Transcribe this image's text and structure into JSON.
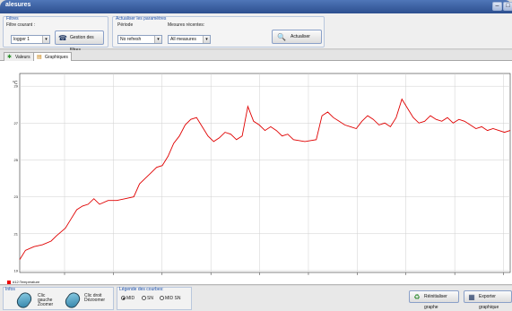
{
  "window": {
    "title": "alesures"
  },
  "filters": {
    "group_title": "Filtres",
    "current_label": "Filtre courant :",
    "current_value": "logger 1",
    "manage_button": "Gestion des filtres"
  },
  "params": {
    "group_title": "Actualiser les paramètres",
    "period_label": "Période",
    "period_value": "No refresh",
    "recent_label": "Mesures récentes:",
    "recent_value": "All measures",
    "refresh_button": "Actualiser"
  },
  "tabs": [
    {
      "label": "Valeurs",
      "active": false
    },
    {
      "label": "Graphiques",
      "active": true
    }
  ],
  "legend": {
    "entry": "#12:Temperature",
    "color": "#e00000"
  },
  "infos": {
    "group_title": "Infos",
    "left_click": "Clic gauche Zoomer",
    "right_click": "Clic droit Dézoomer"
  },
  "curve_legend": {
    "group_title": "Légende des courbes:",
    "options": [
      {
        "label": "MID",
        "selected": true
      },
      {
        "label": "SN",
        "selected": false
      },
      {
        "label": "MID SN",
        "selected": false
      }
    ]
  },
  "actions": {
    "reset_button": "Réinitialiser graphe",
    "export_button": "Exporter graphique"
  },
  "chart_data": {
    "type": "line",
    "ylabel": "°C",
    "ylim": [
      18.9,
      29.3
    ],
    "y_ticks": [
      "19",
      "21",
      "23",
      "25",
      "27",
      "29"
    ],
    "x_ticks": [
      "",
      "",
      "",
      "",
      "",
      "",
      "",
      "",
      "",
      ""
    ],
    "series": [
      {
        "name": "#12:Temperature",
        "color": "#e00000",
        "points": [
          [
            0,
            19.6
          ],
          [
            1,
            20.1
          ],
          [
            2.5,
            20.3
          ],
          [
            4,
            20.4
          ],
          [
            5.5,
            20.6
          ],
          [
            6.5,
            20.9
          ],
          [
            8,
            21.3
          ],
          [
            9,
            21.8
          ],
          [
            10,
            22.3
          ],
          [
            11,
            22.5
          ],
          [
            12,
            22.6
          ],
          [
            13,
            22.9
          ],
          [
            14,
            22.6
          ],
          [
            15.5,
            22.8
          ],
          [
            17,
            22.8
          ],
          [
            18.5,
            22.9
          ],
          [
            20,
            23.0
          ],
          [
            21,
            23.7
          ],
          [
            22,
            24.0
          ],
          [
            23,
            24.3
          ],
          [
            24,
            24.6
          ],
          [
            25,
            24.7
          ],
          [
            26,
            25.2
          ],
          [
            27,
            25.9
          ],
          [
            28,
            26.3
          ],
          [
            29,
            26.9
          ],
          [
            30,
            27.2
          ],
          [
            31,
            27.3
          ],
          [
            32,
            26.8
          ],
          [
            33,
            26.3
          ],
          [
            34,
            26.0
          ],
          [
            35,
            26.2
          ],
          [
            36,
            26.5
          ],
          [
            37,
            26.4
          ],
          [
            38,
            26.1
          ],
          [
            39,
            26.3
          ],
          [
            40,
            27.9
          ],
          [
            41,
            27.1
          ],
          [
            42,
            26.9
          ],
          [
            43,
            26.6
          ],
          [
            44,
            26.8
          ],
          [
            45,
            26.6
          ],
          [
            46,
            26.3
          ],
          [
            47,
            26.4
          ],
          [
            48,
            26.1
          ],
          [
            50,
            26.0
          ],
          [
            52,
            26.1
          ],
          [
            53,
            27.4
          ],
          [
            54,
            27.6
          ],
          [
            55,
            27.3
          ],
          [
            56,
            27.1
          ],
          [
            57,
            26.9
          ],
          [
            58,
            26.8
          ],
          [
            59,
            26.7
          ],
          [
            60,
            27.1
          ],
          [
            61,
            27.4
          ],
          [
            62,
            27.2
          ],
          [
            63,
            26.9
          ],
          [
            64,
            27.0
          ],
          [
            65,
            26.8
          ],
          [
            66,
            27.3
          ],
          [
            67,
            28.3
          ],
          [
            68,
            27.8
          ],
          [
            69,
            27.3
          ],
          [
            70,
            27.0
          ],
          [
            71,
            27.1
          ],
          [
            72,
            27.4
          ],
          [
            73,
            27.2
          ],
          [
            74,
            27.1
          ],
          [
            75,
            27.3
          ],
          [
            76,
            27.0
          ],
          [
            77,
            27.2
          ],
          [
            78,
            27.1
          ],
          [
            79,
            26.9
          ],
          [
            80,
            26.7
          ],
          [
            81,
            26.8
          ],
          [
            82,
            26.6
          ],
          [
            83,
            26.7
          ],
          [
            84,
            26.6
          ],
          [
            85,
            26.5
          ],
          [
            86,
            26.6
          ]
        ]
      }
    ]
  }
}
